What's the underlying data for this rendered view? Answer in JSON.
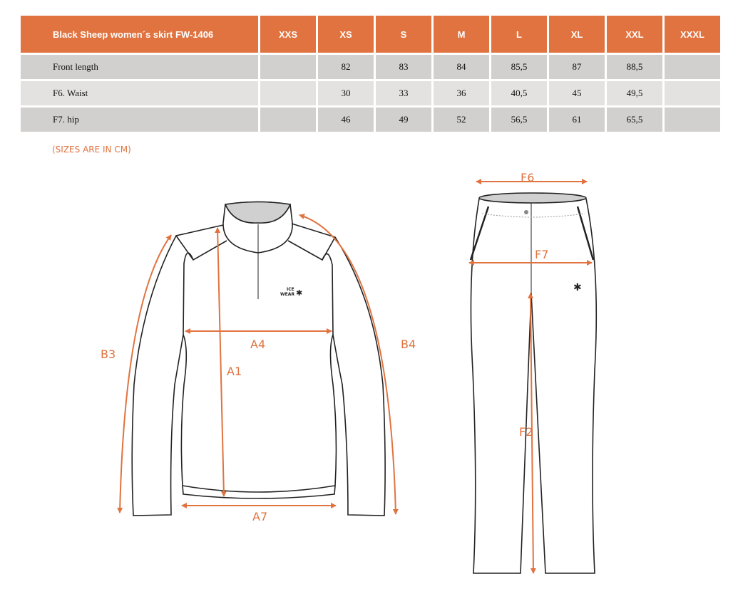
{
  "table": {
    "title": "Black Sheep women´s skirt FW-1406",
    "sizes": [
      "XXS",
      "XS",
      "S",
      "M",
      "L",
      "XL",
      "XXL",
      "XXXL"
    ],
    "rows": [
      {
        "label": "Front length",
        "values": [
          "",
          "82",
          "83",
          "84",
          "85,5",
          "87",
          "88,5",
          ""
        ]
      },
      {
        "label": "F6. Waist",
        "values": [
          "",
          "30",
          "33",
          "36",
          "40,5",
          "45",
          "49,5",
          ""
        ]
      },
      {
        "label": "F7. hip",
        "values": [
          "",
          "46",
          "49",
          "52",
          "56,5",
          "61",
          "65,5",
          ""
        ]
      }
    ]
  },
  "note": "(SIZES ARE IN CM)",
  "jacket": {
    "labels": {
      "b3": "B3",
      "a4": "A4",
      "a1": "A1",
      "a7": "A7",
      "b4": "B4"
    },
    "logo": "ICE WEAR"
  },
  "pants": {
    "labels": {
      "f6": "F6",
      "f7": "F7",
      "f2": "F2"
    }
  },
  "colors": {
    "accent": "#e0733f",
    "row_dark": "#d1d0ce",
    "row_light": "#e3e2e0"
  }
}
